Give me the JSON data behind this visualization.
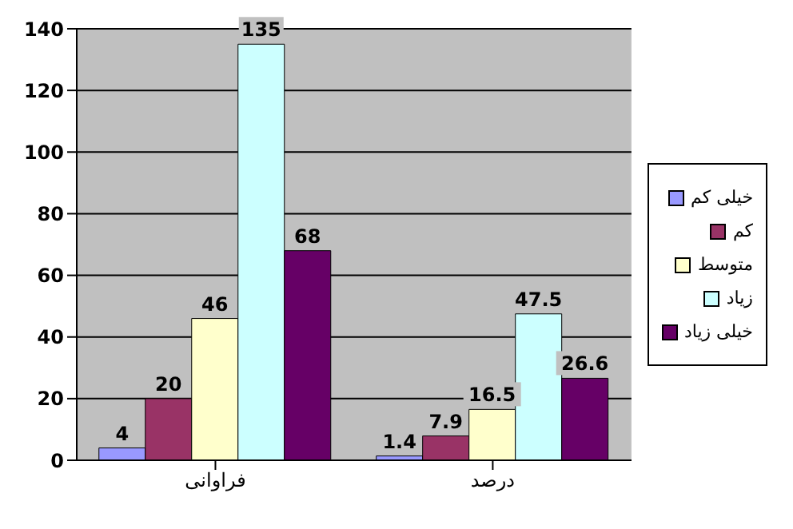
{
  "chart_data": {
    "type": "bar",
    "categories": [
      "فراوانی",
      "درصد"
    ],
    "series": [
      {
        "name": "خیلی کم",
        "color": "#9999ff",
        "values": [
          4,
          1.4
        ]
      },
      {
        "name": "کم",
        "color": "#993366",
        "values": [
          20,
          7.9
        ]
      },
      {
        "name": "متوسط",
        "color": "#ffffcc",
        "values": [
          46,
          16.5
        ]
      },
      {
        "name": "زیاد",
        "color": "#ccffff",
        "values": [
          135,
          47.5
        ]
      },
      {
        "name": "خیلی زیاد",
        "color": "#660066",
        "values": [
          68,
          26.6
        ]
      }
    ],
    "ylim": [
      0,
      140
    ],
    "yticks": [
      0,
      20,
      40,
      60,
      80,
      100,
      120,
      140
    ],
    "grid": "y",
    "legend": "right",
    "data_labels": true
  }
}
